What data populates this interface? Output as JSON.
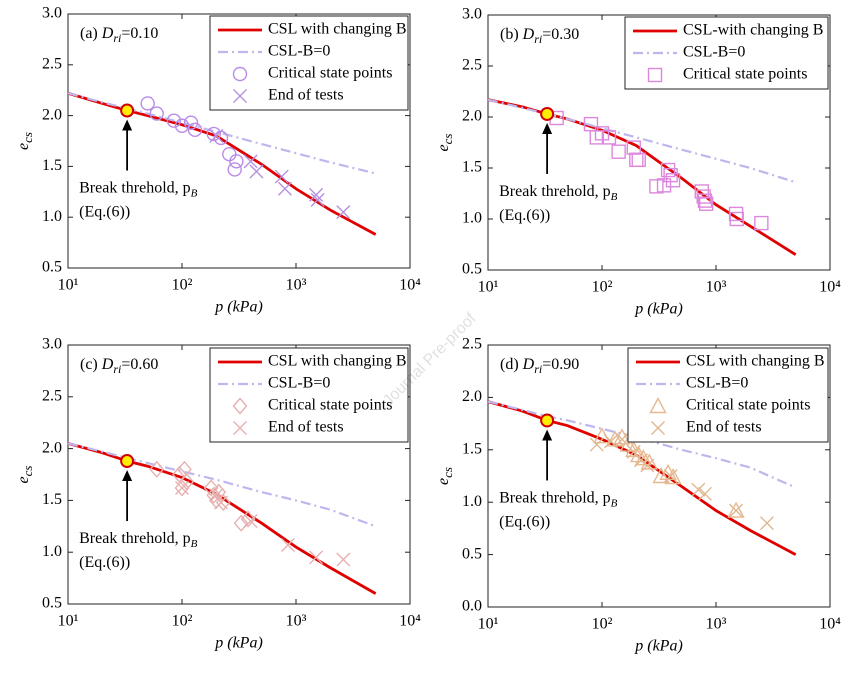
{
  "chart_data": [
    {
      "type": "line",
      "title_parts": [
        "(a) ",
        "D",
        "ri",
        "=0.10"
      ],
      "xlabel": "p (kPa)",
      "ylabel": "e",
      "ylabel_sub": "cs",
      "log_x": true,
      "xlim": [
        10,
        10000
      ],
      "xticks": [
        {
          "value": 10,
          "label": "10¹"
        },
        {
          "value": 100,
          "label": "10²"
        },
        {
          "value": 1000,
          "label": "10³"
        },
        {
          "value": 10000,
          "label": "10⁴"
        }
      ],
      "ylim": [
        0.5,
        3
      ],
      "yticks": [
        0.5,
        {
          "value": 1,
          "label": "1.0"
        },
        1.5,
        {
          "value": 2,
          "label": "2.0"
        },
        2.5,
        {
          "value": 3,
          "label": "3.0"
        }
      ],
      "x": [
        10,
        20,
        33,
        50,
        100,
        200,
        500,
        1000,
        2000,
        5000
      ],
      "series": [
        {
          "name": "CSL with changing B",
          "color": "#e00000",
          "dash": false,
          "values": [
            2.22,
            2.12,
            2.05,
            2.0,
            1.91,
            1.8,
            1.52,
            1.28,
            1.07,
            0.83
          ]
        },
        {
          "name": "CSL-B=0",
          "color": "#bcb8ee",
          "dash": true,
          "values": [
            2.22,
            2.13,
            2.07,
            2.02,
            1.93,
            1.84,
            1.72,
            1.63,
            1.54,
            1.43
          ]
        }
      ],
      "scatter": [
        {
          "name": "Critical state points",
          "color": "#b98ce8",
          "marker": "circle",
          "x": [
            50,
            60,
            85,
            100,
            120,
            130,
            190,
            220,
            260,
            290,
            300
          ],
          "y": [
            2.12,
            2.02,
            1.95,
            1.9,
            1.93,
            1.86,
            1.82,
            1.78,
            1.62,
            1.47,
            1.55
          ]
        },
        {
          "name": "End of tests",
          "color": "#b590e0",
          "marker": "cross",
          "x": [
            200,
            400,
            450,
            750,
            800,
            1500,
            1550,
            2600
          ],
          "y": [
            1.8,
            1.55,
            1.45,
            1.4,
            1.28,
            1.22,
            1.17,
            1.05
          ]
        }
      ],
      "break_point": {
        "x": 33,
        "y": 2.05
      },
      "annotation_lines": [
        "Break threhold, p",
        "(Eq.(6))"
      ],
      "annotation_sub": "B"
    },
    {
      "type": "line",
      "title_parts": [
        "(b) ",
        "D",
        "ri",
        "=0.30"
      ],
      "xlabel": "p (kPa)",
      "ylabel": "e",
      "ylabel_sub": "cs",
      "log_x": true,
      "xlim": [
        10,
        10000
      ],
      "xticks": [
        {
          "value": 10,
          "label": "10¹"
        },
        {
          "value": 100,
          "label": "10²"
        },
        {
          "value": 1000,
          "label": "10³"
        },
        {
          "value": 10000,
          "label": "10⁴"
        }
      ],
      "ylim": [
        0.5,
        3
      ],
      "yticks": [
        0.5,
        {
          "value": 1,
          "label": "1.0"
        },
        1.5,
        {
          "value": 2,
          "label": "2.0"
        },
        2.5,
        {
          "value": 3,
          "label": "3.0"
        }
      ],
      "x": [
        10,
        20,
        33,
        50,
        100,
        200,
        500,
        1000,
        2000,
        5000
      ],
      "series": [
        {
          "name": "CSL-with changing B",
          "color": "#e00000",
          "dash": false,
          "values": [
            2.17,
            2.1,
            2.03,
            1.98,
            1.87,
            1.72,
            1.4,
            1.14,
            0.93,
            0.65
          ]
        },
        {
          "name": "CSL-B=0",
          "color": "#bcb8ee",
          "dash": true,
          "values": [
            2.17,
            2.09,
            2.03,
            1.98,
            1.89,
            1.8,
            1.68,
            1.59,
            1.5,
            1.36
          ]
        }
      ],
      "scatter": [
        {
          "name": "Critical state points",
          "color": "#dd88dd",
          "marker": "square",
          "x": [
            40,
            80,
            90,
            100,
            115,
            140,
            190,
            200,
            210,
            300,
            350,
            380,
            400,
            420,
            750,
            780,
            800,
            820,
            1500,
            1520,
            2500
          ],
          "y": [
            1.99,
            1.93,
            1.8,
            1.84,
            1.8,
            1.66,
            1.7,
            1.58,
            1.58,
            1.32,
            1.33,
            1.48,
            1.43,
            1.38,
            1.27,
            1.22,
            1.18,
            1.15,
            1.05,
            1.0,
            0.96
          ]
        }
      ],
      "break_point": {
        "x": 33,
        "y": 2.03
      },
      "annotation_lines": [
        "Break threhold, p",
        "(Eq.(6))"
      ],
      "annotation_sub": "B"
    },
    {
      "type": "line",
      "title_parts": [
        "(c) ",
        "D",
        "ri",
        "=0.60"
      ],
      "xlabel": "p (kPa)",
      "ylabel": "e",
      "ylabel_sub": "cs",
      "log_x": true,
      "xlim": [
        10,
        10000
      ],
      "xticks": [
        {
          "value": 10,
          "label": "10¹"
        },
        {
          "value": 100,
          "label": "10²"
        },
        {
          "value": 1000,
          "label": "10³"
        },
        {
          "value": 10000,
          "label": "10⁴"
        }
      ],
      "ylim": [
        0.5,
        3
      ],
      "yticks": [
        0.5,
        {
          "value": 1,
          "label": "1.0"
        },
        1.5,
        {
          "value": 2,
          "label": "2.0"
        },
        2.5,
        {
          "value": 3,
          "label": "3.0"
        }
      ],
      "x": [
        10,
        20,
        33,
        50,
        100,
        200,
        500,
        1000,
        2000,
        5000
      ],
      "series": [
        {
          "name": "CSL with changing B",
          "color": "#e00000",
          "dash": false,
          "values": [
            2.05,
            1.96,
            1.88,
            1.83,
            1.72,
            1.56,
            1.28,
            1.05,
            0.85,
            0.6
          ]
        },
        {
          "name": "CSL-B=0",
          "color": "#bcb8ee",
          "dash": true,
          "values": [
            2.05,
            1.97,
            1.91,
            1.86,
            1.78,
            1.7,
            1.58,
            1.5,
            1.41,
            1.25
          ]
        }
      ],
      "scatter": [
        {
          "name": "Critical state points",
          "color": "#e8b0b0",
          "marker": "diamond",
          "x": [
            60,
            95,
            100,
            105,
            110,
            180,
            190,
            200,
            210,
            230,
            330,
            380
          ],
          "y": [
            1.8,
            1.75,
            1.62,
            1.8,
            1.68,
            1.62,
            1.55,
            1.5,
            1.58,
            1.48,
            1.28,
            1.32
          ]
        },
        {
          "name": "End of tests",
          "color": "#e8b0b0",
          "marker": "cross",
          "x": [
            100,
            200,
            220,
            400,
            850,
            1500,
            2600
          ],
          "y": [
            1.62,
            1.55,
            1.48,
            1.3,
            1.07,
            0.95,
            0.93
          ]
        }
      ],
      "break_point": {
        "x": 33,
        "y": 1.88
      },
      "annotation_lines": [
        "Break threhold, p",
        "(Eq.(6))"
      ],
      "annotation_sub": "B"
    },
    {
      "type": "line",
      "title_parts": [
        "(d) ",
        "D",
        "ri",
        "=0.90"
      ],
      "xlabel": "p (kPa)",
      "ylabel": "e",
      "ylabel_sub": "cs",
      "log_x": true,
      "xlim": [
        10,
        10000
      ],
      "xticks": [
        {
          "value": 10,
          "label": "10¹"
        },
        {
          "value": 100,
          "label": "10²"
        },
        {
          "value": 1000,
          "label": "10³"
        },
        {
          "value": 10000,
          "label": "10⁴"
        }
      ],
      "ylim": [
        0,
        2.5
      ],
      "yticks": [
        {
          "value": 0,
          "label": "0.0"
        },
        0.5,
        {
          "value": 1,
          "label": "1.0"
        },
        1.5,
        {
          "value": 2,
          "label": "2.0"
        },
        2.5
      ],
      "x": [
        10,
        20,
        33,
        50,
        100,
        200,
        500,
        1000,
        2000,
        5000
      ],
      "series": [
        {
          "name": "CSL with changing B",
          "color": "#e00000",
          "dash": false,
          "values": [
            1.96,
            1.87,
            1.78,
            1.73,
            1.6,
            1.45,
            1.15,
            0.92,
            0.73,
            0.5
          ]
        },
        {
          "name": "CSL-B=0",
          "color": "#bcb8ee",
          "dash": true,
          "values": [
            1.96,
            1.88,
            1.82,
            1.78,
            1.7,
            1.62,
            1.5,
            1.42,
            1.33,
            1.14
          ]
        }
      ],
      "scatter": [
        {
          "name": "Critical state points",
          "color": "#e8b890",
          "marker": "triangle",
          "x": [
            100,
            130,
            150,
            170,
            190,
            210,
            230,
            260,
            330,
            380,
            420,
            1500
          ],
          "y": [
            1.63,
            1.6,
            1.62,
            1.55,
            1.5,
            1.45,
            1.42,
            1.38,
            1.25,
            1.28,
            1.24,
            0.92
          ]
        },
        {
          "name": "End of tests",
          "color": "#e0b890",
          "marker": "cross",
          "x": [
            90,
            120,
            150,
            190,
            220,
            250,
            400,
            700,
            800,
            1500,
            2800
          ],
          "y": [
            1.55,
            1.58,
            1.6,
            1.48,
            1.4,
            1.35,
            1.25,
            1.12,
            1.08,
            0.92,
            0.8
          ]
        }
      ],
      "break_point": {
        "x": 33,
        "y": 1.78
      },
      "annotation_lines": [
        "Break threhold, p",
        "(Eq.(6))"
      ],
      "annotation_sub": "B"
    }
  ],
  "watermark": "Journal Pre-proof"
}
